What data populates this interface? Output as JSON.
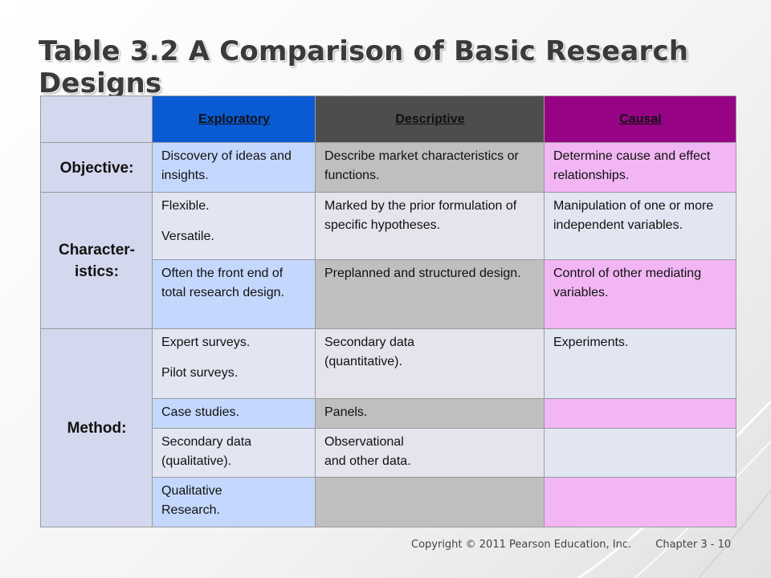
{
  "title": "Table 3.2 A Comparison of Basic Research Designs",
  "columns": {
    "exploratory": "Exploratory",
    "descriptive": "Descriptive",
    "causal": "Causal"
  },
  "rows": {
    "objective": {
      "label": "Objective:",
      "exploratory": "Discovery of ideas and insights.",
      "descriptive": "Describe market characteristics or functions.",
      "causal": "Determine cause and effect relationships."
    },
    "characteristics": {
      "label_line1": "Character-",
      "label_line2": "istics:",
      "r1": {
        "exploratory_a": "Flexible.",
        "exploratory_b": "Versatile.",
        "descriptive": "Marked by the prior formulation of specific hypotheses.",
        "causal": "Manipulation of one or more independent variables."
      },
      "r2": {
        "exploratory": "Often the front end of total research design.",
        "descriptive": "Preplanned and structured design.",
        "causal": "Control of other mediating variables."
      }
    },
    "method": {
      "label": "Method:",
      "r1": {
        "exploratory_a": "Expert surveys.",
        "exploratory_b": "Pilot surveys.",
        "descriptive_line1": "Secondary data",
        "descriptive_line2": "(quantitative).",
        "causal": "Experiments."
      },
      "r2": {
        "exploratory": "Case studies.",
        "descriptive": "Panels.",
        "causal": ""
      },
      "r3": {
        "exploratory_line1": "Secondary data",
        "exploratory_line2": "(qualitative).",
        "descriptive_line1": "Observational",
        "descriptive_line2": "and other data.",
        "causal": ""
      },
      "r4": {
        "exploratory_line1": "Qualitative",
        "exploratory_line2": "Research.",
        "descriptive": "",
        "causal": ""
      }
    }
  },
  "footer": {
    "copyright": "Copyright © 2011 Pearson Education, Inc.",
    "chapter": "Chapter 3 - 10"
  },
  "colors": {
    "exploratory_header": "#0a5ad3",
    "descriptive_header": "#4d4d4d",
    "causal_header": "#960485",
    "row_label_text": "#6a2a8e"
  }
}
